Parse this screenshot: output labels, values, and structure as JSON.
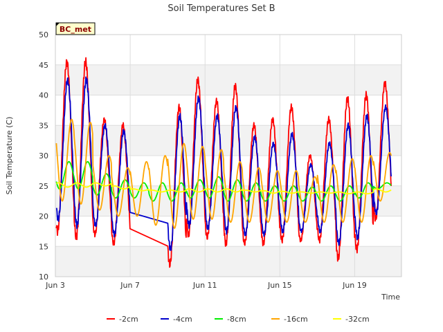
{
  "chart_data": {
    "type": "line",
    "title": "Soil Temperatures Set B",
    "xlabel": "Time",
    "ylabel": "Soil Temperature (C)",
    "site_badge": "BC_met",
    "ylim": [
      10,
      50
    ],
    "xlim": [
      0,
      18.5
    ],
    "yticks": [
      10,
      15,
      20,
      25,
      30,
      35,
      40,
      45,
      50
    ],
    "xticks": [
      {
        "day": 0,
        "label": "Jun 3"
      },
      {
        "day": 4,
        "label": "Jun 7"
      },
      {
        "day": 8,
        "label": "Jun 11"
      },
      {
        "day": 12,
        "label": "Jun 15"
      },
      {
        "day": 16,
        "label": "Jun 19"
      }
    ],
    "grid": true,
    "background_bands": true,
    "legend_position": "bottom",
    "series": [
      {
        "name": "-2cm",
        "color": "#ff0000",
        "depth": 2,
        "daily_max": [
          45.5,
          45.5,
          36,
          35,
          null,
          null,
          38,
          42.5,
          39,
          41.5,
          35,
          36,
          38,
          30,
          36,
          39.5,
          40,
          42
        ],
        "daily_min": [
          17.5,
          16.5,
          17,
          15.5,
          null,
          13.5,
          12,
          17,
          16.5,
          15.5,
          15.5,
          15.5,
          16,
          16,
          16,
          13,
          14.5,
          19.5
        ]
      },
      {
        "name": "-4cm",
        "color": "#0000cc",
        "depth": 4,
        "daily_max": [
          42.5,
          42.5,
          35,
          34,
          null,
          null,
          36.5,
          39.5,
          36.5,
          38,
          33,
          32,
          33.5,
          28.5,
          32,
          35,
          36.5,
          38
        ],
        "daily_min": [
          19.5,
          18.5,
          18.5,
          17,
          null,
          15.5,
          14.5,
          18.5,
          18,
          17.5,
          17,
          17,
          17.5,
          17.5,
          17.5,
          15.5,
          16.5,
          20.5
        ]
      },
      {
        "name": "-8cm",
        "color": "#00ee00",
        "depth": 8,
        "daily_max": [
          29,
          29,
          27,
          26,
          25.5,
          25.5,
          25.5,
          26,
          26.5,
          26,
          25.5,
          25,
          25,
          24.8,
          25,
          25,
          25.5,
          25.5
        ],
        "daily_min": [
          24.5,
          24.5,
          23.5,
          23,
          23,
          22.5,
          22.5,
          23,
          23,
          22.5,
          22.5,
          22.5,
          22.5,
          22.5,
          22.5,
          22.5,
          23,
          24.5
        ]
      },
      {
        "name": "-16cm",
        "color": "#ffa500",
        "depth": 16,
        "daily_max": [
          36,
          35.5,
          30,
          28,
          29,
          30,
          32,
          31.5,
          31,
          29,
          28,
          27.5,
          27.5,
          26.5,
          28.5,
          29.5,
          30,
          30.5
        ],
        "daily_min": [
          22.5,
          22,
          21,
          20,
          20,
          18.5,
          18,
          19.5,
          19.5,
          19,
          19,
          19,
          19,
          19,
          19,
          19,
          19,
          22.5
        ]
      },
      {
        "name": "-32cm",
        "color": "#ffff00",
        "depth": 32,
        "daily_max": [
          25.5,
          25.5,
          25.5,
          25,
          24.5,
          24.3,
          24.3,
          24.5,
          24.5,
          24.5,
          24.3,
          24.2,
          24.1,
          24,
          24,
          24,
          24,
          24.5
        ],
        "daily_min": [
          24.8,
          24.8,
          25,
          24.5,
          24.2,
          24,
          24,
          24,
          24,
          24,
          24,
          23.8,
          23.8,
          23.8,
          23.8,
          23.7,
          23.7,
          24
        ]
      }
    ]
  }
}
